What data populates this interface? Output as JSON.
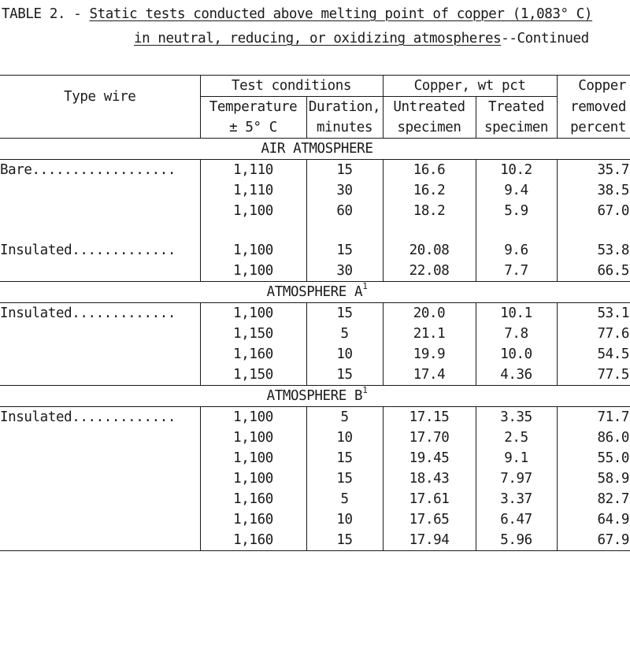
{
  "caption": {
    "prefix": "TABLE 2. - ",
    "title_line1": "Static tests conducted above melting point of copper (1,083° C)",
    "title_line2": "in neutral, reducing, or oxidizing atmospheres",
    "suffix": "--Continued"
  },
  "headers": {
    "type_wire": "Type wire",
    "test_conditions": "Test conditions",
    "copper_wt_pct": "Copper, wt pct",
    "copper_removed": [
      "Copper",
      "removed",
      "percent"
    ],
    "temperature": [
      "Temperature",
      "± 5° C"
    ],
    "duration": [
      "Duration,",
      "minutes"
    ],
    "untreated": [
      "Untreated",
      "specimen"
    ],
    "treated": [
      "Treated",
      "specimen"
    ]
  },
  "sections": [
    {
      "title": "AIR ATMOSPHERE",
      "sup": "",
      "groups": [
        {
          "type": "Bare..................",
          "rows": [
            [
              "1,110",
              "15",
              "16.6",
              "10.2",
              "35.7"
            ],
            [
              "1,110",
              "30",
              "16.2",
              "9.4",
              "38.5"
            ],
            [
              "1,100",
              "60",
              "18.2",
              "5.9",
              "67.0"
            ]
          ]
        },
        {
          "type": "Insulated.............",
          "rows": [
            [
              "1,100",
              "15",
              "20.08",
              "9.6",
              "53.8"
            ],
            [
              "1,100",
              "30",
              "22.08",
              "7.7",
              "66.5"
            ]
          ]
        }
      ]
    },
    {
      "title": "ATMOSPHERE A",
      "sup": "1",
      "groups": [
        {
          "type": "Insulated.............",
          "rows": [
            [
              "1,100",
              "15",
              "20.0",
              "10.1",
              "53.1"
            ],
            [
              "1,150",
              "5",
              "21.1",
              "7.8",
              "77.6"
            ],
            [
              "1,160",
              "10",
              "19.9",
              "10.0",
              "54.5"
            ],
            [
              "1,150",
              "15",
              "17.4",
              "4.36",
              "77.5"
            ]
          ]
        }
      ]
    },
    {
      "title": "ATMOSPHERE B",
      "sup": "1",
      "groups": [
        {
          "type": "Insulated.............",
          "rows": [
            [
              "1,100",
              "5",
              "17.15",
              "3.35",
              "71.7"
            ],
            [
              "1,100",
              "10",
              "17.70",
              "2.5",
              "86.0"
            ],
            [
              "1,100",
              "15",
              "19.45",
              "9.1",
              "55.0"
            ],
            [
              "1,100",
              "15",
              "18.43",
              "7.97",
              "58.9"
            ],
            [
              "1,160",
              "5",
              "17.61",
              "3.37",
              "82.7"
            ],
            [
              "1,160",
              "10",
              "17.65",
              "6.47",
              "64.9"
            ],
            [
              "1,160",
              "15",
              "17.94",
              "5.96",
              "67.9"
            ]
          ]
        }
      ]
    }
  ]
}
